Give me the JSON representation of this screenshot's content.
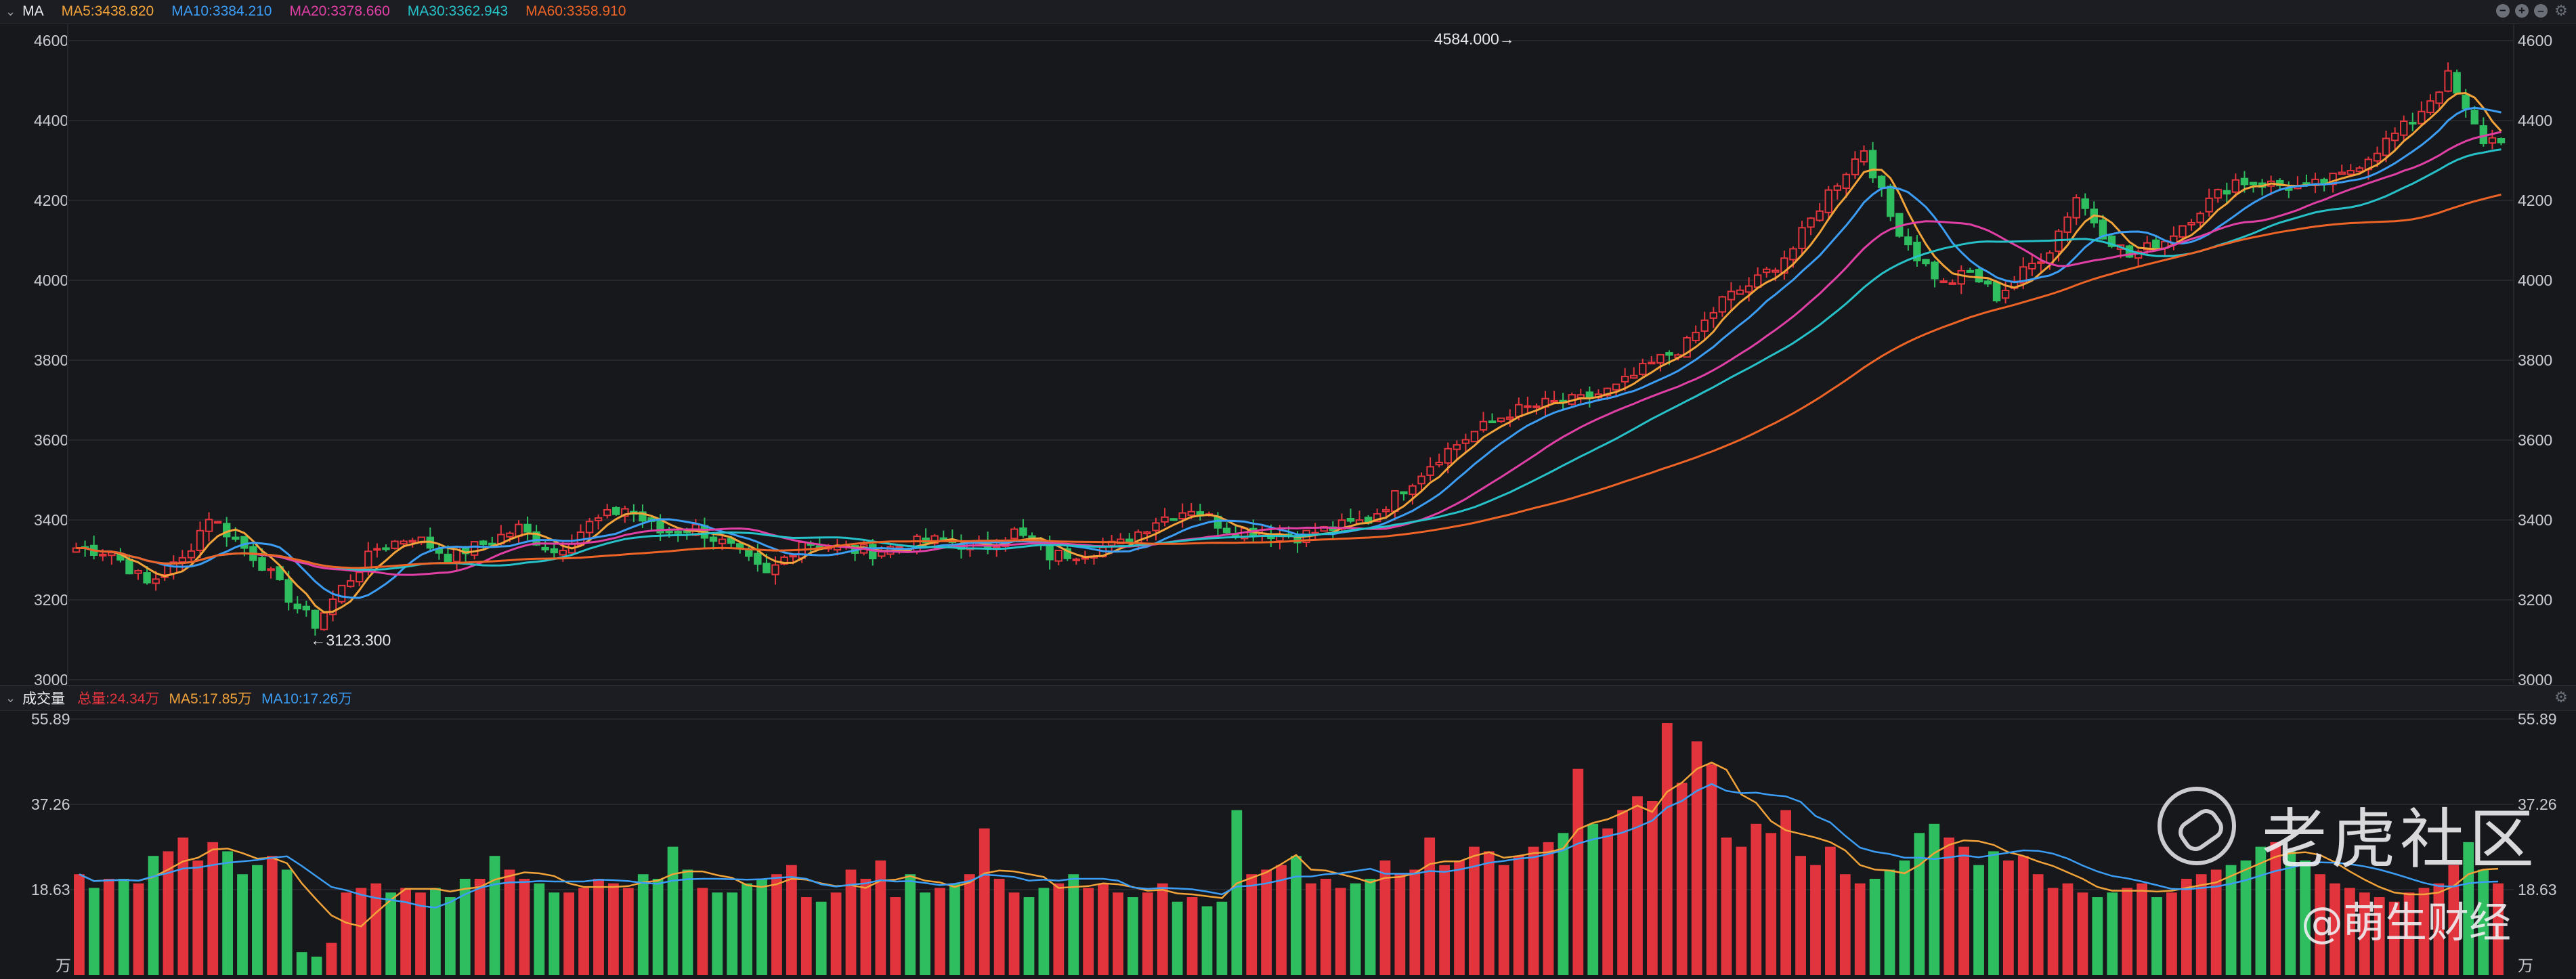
{
  "price_header": {
    "indicator": "MA",
    "items": [
      {
        "label": "MA5:3438.820",
        "color": "#f2a33a"
      },
      {
        "label": "MA10:3384.210",
        "color": "#3c9df5"
      },
      {
        "label": "MA20:3378.660",
        "color": "#e040a5"
      },
      {
        "label": "MA30:3362.943",
        "color": "#27c2c9"
      },
      {
        "label": "MA60:3358.910",
        "color": "#ee6427"
      }
    ]
  },
  "volume_header": {
    "title": "成交量",
    "items": [
      {
        "label": "总量:24.34万",
        "color": "#e2343c"
      },
      {
        "label": "MA5:17.85万",
        "color": "#f2a33a"
      },
      {
        "label": "MA10:17.26万",
        "color": "#3c9df5"
      }
    ]
  },
  "colors": {
    "up": "#e2343c",
    "down": "#2ebd5f",
    "grid": "#25272c",
    "axis_text": "#c9ccd3"
  },
  "watermark": {
    "brand": "老虎社区",
    "author": "@萌生财经"
  },
  "chart_data": [
    {
      "type": "candlestick",
      "title": "",
      "ylim": [
        3000,
        4600
      ],
      "y_ticks": [
        "3000",
        "3200",
        "3400",
        "3600",
        "3800",
        "4000",
        "4200",
        "4400",
        "4600"
      ],
      "annotations": [
        {
          "label": "←3123.300",
          "index": 26,
          "value": 3123.3
        },
        {
          "label": "4584.000→",
          "index": 163,
          "value": 4584.0
        }
      ],
      "anchors": [
        [
          0,
          3330
        ],
        [
          4,
          3320
        ],
        [
          8,
          3240
        ],
        [
          12,
          3300
        ],
        [
          15,
          3410
        ],
        [
          18,
          3350
        ],
        [
          21,
          3290
        ],
        [
          25,
          3180
        ],
        [
          27,
          3140
        ],
        [
          30,
          3230
        ],
        [
          34,
          3330
        ],
        [
          38,
          3360
        ],
        [
          42,
          3310
        ],
        [
          46,
          3340
        ],
        [
          50,
          3380
        ],
        [
          54,
          3320
        ],
        [
          58,
          3390
        ],
        [
          62,
          3430
        ],
        [
          66,
          3370
        ],
        [
          70,
          3380
        ],
        [
          74,
          3330
        ],
        [
          78,
          3260
        ],
        [
          82,
          3350
        ],
        [
          86,
          3330
        ],
        [
          90,
          3320
        ],
        [
          94,
          3340
        ],
        [
          98,
          3350
        ],
        [
          102,
          3330
        ],
        [
          106,
          3370
        ],
        [
          110,
          3310
        ],
        [
          114,
          3320
        ],
        [
          118,
          3340
        ],
        [
          122,
          3400
        ],
        [
          126,
          3430
        ],
        [
          130,
          3380
        ],
        [
          134,
          3370
        ],
        [
          138,
          3360
        ],
        [
          142,
          3380
        ],
        [
          146,
          3400
        ],
        [
          150,
          3480
        ],
        [
          154,
          3560
        ],
        [
          158,
          3620
        ],
        [
          162,
          3670
        ],
        [
          166,
          3690
        ],
        [
          170,
          3700
        ],
        [
          174,
          3730
        ],
        [
          178,
          3790
        ],
        [
          182,
          3840
        ],
        [
          186,
          3950
        ],
        [
          190,
          4000
        ],
        [
          194,
          4080
        ],
        [
          198,
          4220
        ],
        [
          202,
          4330
        ],
        [
          205,
          4160
        ],
        [
          208,
          4060
        ],
        [
          211,
          3990
        ],
        [
          214,
          4020
        ],
        [
          217,
          3960
        ],
        [
          220,
          4020
        ],
        [
          223,
          4080
        ],
        [
          226,
          4210
        ],
        [
          229,
          4120
        ],
        [
          232,
          4060
        ],
        [
          236,
          4100
        ],
        [
          240,
          4180
        ],
        [
          244,
          4250
        ],
        [
          248,
          4240
        ],
        [
          252,
          4230
        ],
        [
          256,
          4260
        ],
        [
          260,
          4330
        ],
        [
          264,
          4400
        ],
        [
          268,
          4510
        ],
        [
          270,
          4420
        ],
        [
          272,
          4350
        ]
      ],
      "ma_lines": [
        {
          "name": "MA5",
          "color": "#f2a33a",
          "window": 5
        },
        {
          "name": "MA10",
          "color": "#3c9df5",
          "window": 10
        },
        {
          "name": "MA20",
          "color": "#e040a5",
          "window": 20
        },
        {
          "name": "MA30",
          "color": "#27c2c9",
          "window": 30
        },
        {
          "name": "MA60",
          "color": "#ee6427",
          "window": 60
        }
      ]
    },
    {
      "type": "bar",
      "title": "",
      "ylim": [
        0,
        55.89
      ],
      "y_ticks": [
        "18.63",
        "37.26",
        "55.89"
      ],
      "unit": "万",
      "values": [
        22,
        19,
        21,
        21,
        20,
        26,
        27,
        30,
        25,
        29,
        27,
        22,
        24,
        26,
        23,
        5,
        4,
        7,
        18,
        19,
        20,
        18,
        19,
        18,
        19,
        17,
        21,
        21,
        26,
        23,
        21,
        20,
        18,
        18,
        19,
        21,
        20,
        19,
        22,
        21,
        28,
        23,
        19,
        18,
        18,
        20,
        21,
        22,
        24,
        17,
        16,
        18,
        23,
        21,
        25,
        17,
        22,
        18,
        19,
        20,
        22,
        32,
        21,
        18,
        17,
        19,
        20,
        22,
        19,
        20,
        18,
        17,
        18,
        20,
        16,
        17,
        15,
        16,
        36,
        22,
        23,
        24,
        26,
        20,
        21,
        19,
        20,
        21,
        25,
        22,
        23,
        30,
        24,
        25,
        28,
        27,
        24,
        26,
        28,
        29,
        31,
        45,
        33,
        32,
        36,
        39,
        38,
        55,
        42,
        51,
        46,
        30,
        28,
        33,
        31,
        36,
        26,
        24,
        28,
        22,
        20,
        21,
        23,
        25,
        31,
        33,
        30,
        28,
        24,
        27,
        25,
        26,
        22,
        19,
        20,
        18,
        17,
        18,
        19,
        20,
        17,
        18,
        21,
        22,
        23,
        24,
        25,
        28,
        29,
        27,
        25,
        22,
        20,
        19,
        18,
        17,
        16,
        18,
        19,
        20,
        24,
        29,
        23,
        20
      ]
    }
  ]
}
